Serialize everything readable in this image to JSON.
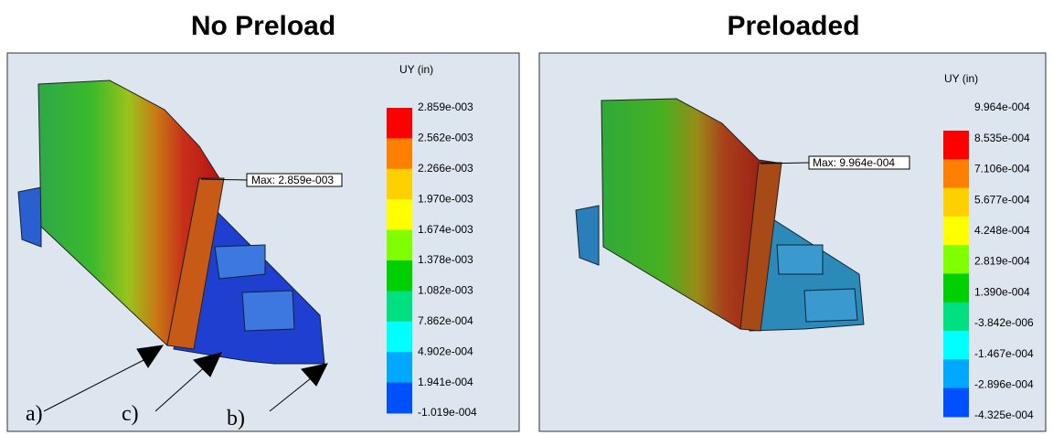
{
  "panels": [
    {
      "title": "No Preload",
      "legend_title": "UY (in)",
      "legend_labels": [
        "2.859e-003",
        "2.562e-003",
        "2.266e-003",
        "1.970e-003",
        "1.674e-003",
        "1.378e-003",
        "1.082e-003",
        "7.862e-004",
        "4.902e-004",
        "1.941e-004",
        "-1.019e-004"
      ],
      "max_label": "Max: 2.859e-003",
      "annotations": [
        "a)",
        "c)",
        "b)"
      ]
    },
    {
      "title": "Preloaded",
      "legend_title": "UY (in)",
      "legend_labels": [
        "9.964e-004",
        "8.535e-004",
        "7.106e-004",
        "5.677e-004",
        "4.248e-004",
        "2.819e-004",
        "1.390e-004",
        "-3.842e-006",
        "-1.467e-004",
        "-2.896e-004",
        "-4.325e-004"
      ],
      "max_label": "Max: 9.964e-004"
    }
  ]
}
